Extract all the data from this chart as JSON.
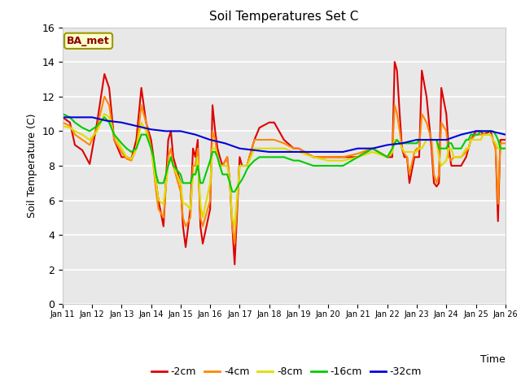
{
  "title": "Soil Temperatures Set C",
  "xlabel": "Time",
  "ylabel": "Soil Temperature (C)",
  "annotation": "BA_met",
  "ylim": [
    0,
    16
  ],
  "xlim": [
    0,
    15
  ],
  "xtick_labels": [
    "Jan 11",
    "Jan 12",
    "Jan 13",
    "Jan 14",
    "Jan 15",
    "Jan 16",
    "Jan 17",
    "Jan 18",
    "Jan 19",
    "Jan 20",
    "Jan 21",
    "Jan 22",
    "Jan 23",
    "Jan 24",
    "Jan 25",
    "Jan 26"
  ],
  "bg_color": "#e8e8e8",
  "fig_color": "#ffffff",
  "series": {
    "-2cm": {
      "color": "#dd0000",
      "x": [
        0,
        0.25,
        0.42,
        0.67,
        0.92,
        1.17,
        1.42,
        1.58,
        1.75,
        2.0,
        2.17,
        2.33,
        2.5,
        2.67,
        2.83,
        3.0,
        3.08,
        3.17,
        3.25,
        3.42,
        3.58,
        3.67,
        3.75,
        4.0,
        4.08,
        4.17,
        4.33,
        4.42,
        4.5,
        4.58,
        4.67,
        4.75,
        5.0,
        5.08,
        5.17,
        5.25,
        5.33,
        5.42,
        5.58,
        5.67,
        5.75,
        5.83,
        6.0,
        6.08,
        6.17,
        6.25,
        6.33,
        6.5,
        6.67,
        7.0,
        7.17,
        7.5,
        7.83,
        8.0,
        8.5,
        9.0,
        9.5,
        10.0,
        10.5,
        11.0,
        11.17,
        11.25,
        11.33,
        11.42,
        11.5,
        11.58,
        11.67,
        11.75,
        11.92,
        12.0,
        12.08,
        12.17,
        12.33,
        12.5,
        12.58,
        12.67,
        12.75,
        12.83,
        13.0,
        13.08,
        13.17,
        13.25,
        13.5,
        13.67,
        13.75,
        13.83,
        14.0,
        14.08,
        14.17,
        14.25,
        14.5,
        14.58,
        14.67,
        14.75,
        14.83,
        15.0
      ],
      "y": [
        10.8,
        10.5,
        9.2,
        8.9,
        8.1,
        10.5,
        13.3,
        12.5,
        9.5,
        8.5,
        8.5,
        8.4,
        9.5,
        12.5,
        10.5,
        9.5,
        8.5,
        7.0,
        6.0,
        4.5,
        9.5,
        10.0,
        8.5,
        7.0,
        4.5,
        3.3,
        5.5,
        9.0,
        8.5,
        9.5,
        4.5,
        3.5,
        5.5,
        11.5,
        10.0,
        9.0,
        8.5,
        8.0,
        8.5,
        7.0,
        4.5,
        2.3,
        8.5,
        8.0,
        8.0,
        8.0,
        8.5,
        9.5,
        10.2,
        10.5,
        10.5,
        9.5,
        9.0,
        9.0,
        8.5,
        8.5,
        8.5,
        8.5,
        9.0,
        8.5,
        8.5,
        14.0,
        13.5,
        11.0,
        9.0,
        8.5,
        8.5,
        7.0,
        8.5,
        8.5,
        8.5,
        13.5,
        12.0,
        9.0,
        7.0,
        6.8,
        7.0,
        12.5,
        11.0,
        9.0,
        8.0,
        8.0,
        8.0,
        8.5,
        9.0,
        9.5,
        10.0,
        10.0,
        10.0,
        9.8,
        10.0,
        9.5,
        9.0,
        4.8,
        9.5,
        9.5
      ]
    },
    "-4cm": {
      "color": "#ff8800",
      "x": [
        0,
        0.25,
        0.42,
        0.67,
        0.92,
        1.17,
        1.42,
        1.58,
        1.75,
        2.0,
        2.17,
        2.33,
        2.5,
        2.67,
        2.83,
        3.0,
        3.08,
        3.17,
        3.25,
        3.42,
        3.58,
        3.67,
        3.75,
        4.0,
        4.08,
        4.17,
        4.33,
        4.42,
        4.5,
        4.58,
        4.67,
        4.75,
        5.0,
        5.08,
        5.17,
        5.25,
        5.33,
        5.42,
        5.58,
        5.67,
        5.75,
        5.83,
        6.0,
        6.08,
        6.17,
        6.25,
        6.33,
        6.5,
        6.67,
        7.0,
        7.17,
        7.5,
        7.83,
        8.0,
        8.5,
        9.0,
        9.5,
        10.0,
        10.5,
        11.0,
        11.17,
        11.25,
        11.33,
        11.42,
        11.5,
        11.58,
        11.67,
        11.75,
        11.92,
        12.0,
        12.08,
        12.17,
        12.33,
        12.5,
        12.58,
        12.67,
        12.75,
        12.83,
        13.0,
        13.08,
        13.17,
        13.25,
        13.5,
        13.67,
        13.75,
        13.83,
        14.0,
        14.08,
        14.17,
        14.25,
        14.5,
        14.58,
        14.67,
        14.75,
        14.83,
        15.0
      ],
      "y": [
        10.5,
        10.3,
        9.8,
        9.5,
        9.2,
        10.2,
        12.0,
        11.5,
        9.5,
        8.8,
        8.4,
        8.3,
        9.0,
        11.5,
        10.5,
        9.0,
        8.0,
        6.5,
        5.5,
        5.0,
        8.5,
        9.0,
        8.0,
        6.5,
        5.0,
        4.5,
        5.0,
        8.0,
        8.0,
        9.0,
        5.0,
        4.5,
        6.0,
        10.0,
        9.5,
        8.5,
        8.0,
        8.0,
        8.5,
        7.0,
        4.5,
        3.5,
        8.0,
        8.0,
        8.0,
        8.0,
        8.5,
        9.5,
        9.5,
        9.5,
        9.5,
        9.3,
        9.0,
        9.0,
        8.5,
        8.5,
        8.5,
        8.7,
        9.0,
        8.5,
        8.7,
        11.5,
        11.0,
        10.0,
        9.0,
        8.7,
        8.5,
        7.5,
        8.8,
        9.0,
        9.0,
        11.0,
        10.5,
        9.5,
        7.5,
        7.0,
        7.5,
        10.5,
        10.0,
        8.5,
        8.3,
        8.5,
        8.5,
        8.8,
        9.0,
        9.5,
        9.8,
        9.8,
        9.8,
        9.8,
        9.8,
        9.5,
        9.0,
        5.8,
        9.3,
        9.3
      ]
    },
    "-8cm": {
      "color": "#dddd00",
      "x": [
        0,
        0.25,
        0.42,
        0.67,
        0.92,
        1.17,
        1.42,
        1.58,
        1.75,
        2.0,
        2.17,
        2.33,
        2.5,
        2.67,
        2.83,
        3.0,
        3.08,
        3.17,
        3.25,
        3.42,
        3.58,
        3.67,
        3.75,
        4.0,
        4.08,
        4.17,
        4.33,
        4.42,
        4.5,
        4.58,
        4.67,
        4.75,
        5.0,
        5.08,
        5.17,
        5.25,
        5.33,
        5.42,
        5.58,
        5.67,
        5.75,
        5.83,
        6.0,
        6.08,
        6.17,
        6.25,
        6.33,
        6.5,
        6.67,
        7.0,
        7.17,
        7.5,
        7.83,
        8.0,
        8.5,
        9.0,
        9.5,
        10.0,
        10.5,
        11.0,
        11.17,
        11.25,
        11.33,
        11.42,
        11.5,
        11.58,
        11.67,
        12.0,
        12.08,
        12.17,
        12.33,
        12.5,
        12.58,
        12.67,
        12.75,
        12.83,
        13.0,
        13.08,
        13.17,
        13.25,
        13.5,
        13.67,
        13.75,
        13.83,
        14.0,
        14.08,
        14.17,
        14.25,
        14.5,
        14.58,
        14.67,
        14.75,
        14.83,
        15.0
      ],
      "y": [
        10.3,
        10.2,
        10.0,
        9.8,
        9.5,
        10.0,
        11.0,
        10.8,
        9.8,
        9.0,
        8.5,
        8.4,
        9.0,
        10.5,
        10.0,
        9.0,
        8.0,
        7.0,
        6.0,
        5.8,
        8.0,
        8.5,
        8.0,
        7.0,
        5.8,
        5.8,
        5.5,
        7.5,
        7.5,
        8.5,
        5.8,
        5.0,
        7.0,
        9.0,
        9.0,
        8.5,
        8.0,
        8.0,
        8.0,
        7.0,
        5.0,
        4.5,
        8.0,
        8.0,
        8.0,
        8.0,
        8.3,
        9.0,
        9.0,
        9.0,
        9.0,
        9.0,
        8.8,
        8.8,
        8.5,
        8.3,
        8.3,
        8.5,
        8.8,
        8.5,
        8.8,
        9.5,
        9.5,
        9.3,
        9.0,
        8.8,
        8.8,
        8.8,
        9.0,
        9.0,
        9.5,
        9.5,
        9.5,
        9.5,
        8.5,
        8.0,
        8.3,
        9.0,
        9.0,
        8.5,
        8.5,
        9.0,
        9.0,
        9.5,
        9.5,
        9.5,
        9.5,
        9.8,
        9.8,
        9.5,
        9.3,
        9.0,
        9.0,
        9.0
      ]
    },
    "-16cm": {
      "color": "#00cc00",
      "x": [
        0,
        0.25,
        0.42,
        0.67,
        0.92,
        1.17,
        1.42,
        1.58,
        1.75,
        2.0,
        2.17,
        2.33,
        2.5,
        2.67,
        2.83,
        3.0,
        3.08,
        3.17,
        3.25,
        3.42,
        3.58,
        3.67,
        3.75,
        4.0,
        4.08,
        4.17,
        4.33,
        4.42,
        4.5,
        4.58,
        4.67,
        4.75,
        5.0,
        5.08,
        5.17,
        5.25,
        5.33,
        5.42,
        5.58,
        5.67,
        5.75,
        5.83,
        6.0,
        6.08,
        6.17,
        6.25,
        6.33,
        6.5,
        6.67,
        7.0,
        7.17,
        7.5,
        7.83,
        8.0,
        8.5,
        9.0,
        9.5,
        10.0,
        10.5,
        11.0,
        11.17,
        11.25,
        11.33,
        11.42,
        11.5,
        11.58,
        11.67,
        12.0,
        12.08,
        12.17,
        12.33,
        12.5,
        12.58,
        12.67,
        12.75,
        12.83,
        13.0,
        13.08,
        13.17,
        13.25,
        13.5,
        13.67,
        13.75,
        13.83,
        14.0,
        14.08,
        14.17,
        14.25,
        14.5,
        14.58,
        14.67,
        14.75,
        14.83,
        15.0
      ],
      "y": [
        11.0,
        10.8,
        10.5,
        10.2,
        10.0,
        10.3,
        10.8,
        10.5,
        9.8,
        9.3,
        9.0,
        8.8,
        9.0,
        9.8,
        9.8,
        9.0,
        8.5,
        7.5,
        7.0,
        7.0,
        8.0,
        8.5,
        8.0,
        7.5,
        7.0,
        7.0,
        7.0,
        7.5,
        7.5,
        8.0,
        7.0,
        7.0,
        8.3,
        8.8,
        8.8,
        8.5,
        8.0,
        7.5,
        7.5,
        7.0,
        6.5,
        6.5,
        7.0,
        7.2,
        7.5,
        7.8,
        8.0,
        8.3,
        8.5,
        8.5,
        8.5,
        8.5,
        8.3,
        8.3,
        8.0,
        8.0,
        8.0,
        8.5,
        9.0,
        8.5,
        9.0,
        9.3,
        9.5,
        9.3,
        9.3,
        9.3,
        9.3,
        9.3,
        9.5,
        9.5,
        9.5,
        9.5,
        9.5,
        9.5,
        9.0,
        9.0,
        9.0,
        9.3,
        9.3,
        9.0,
        9.0,
        9.5,
        9.5,
        9.8,
        9.8,
        9.8,
        10.0,
        10.0,
        10.0,
        10.0,
        9.8,
        9.5,
        9.0,
        9.0
      ]
    },
    "-32cm": {
      "color": "#0000dd",
      "x": [
        0,
        0.5,
        1.0,
        1.5,
        2.0,
        2.5,
        3.0,
        3.5,
        4.0,
        4.5,
        5.0,
        5.5,
        6.0,
        6.5,
        7.0,
        7.5,
        8.0,
        8.5,
        9.0,
        9.5,
        10.0,
        10.5,
        11.0,
        11.5,
        12.0,
        12.5,
        13.0,
        13.5,
        14.0,
        14.5,
        15.0
      ],
      "y": [
        10.8,
        10.8,
        10.8,
        10.6,
        10.5,
        10.3,
        10.1,
        10.0,
        10.0,
        9.8,
        9.5,
        9.3,
        9.0,
        8.9,
        8.8,
        8.8,
        8.8,
        8.8,
        8.8,
        8.8,
        9.0,
        9.0,
        9.2,
        9.3,
        9.5,
        9.5,
        9.5,
        9.8,
        10.0,
        10.0,
        9.8
      ]
    }
  }
}
